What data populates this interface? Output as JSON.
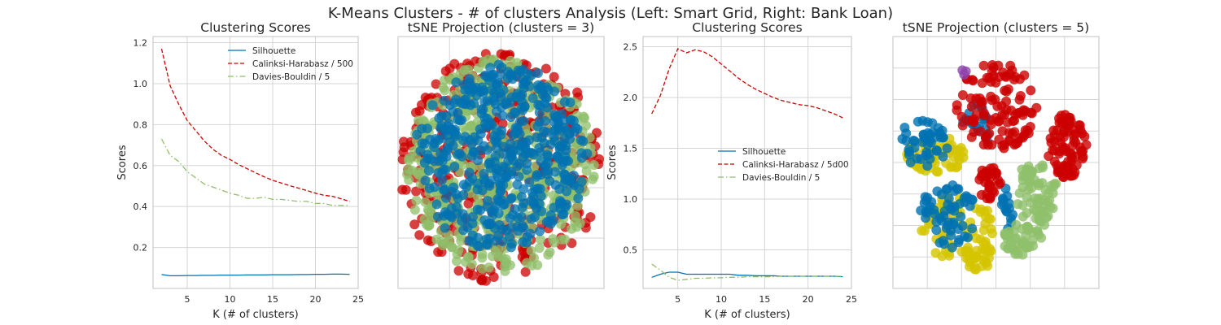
{
  "figure": {
    "suptitle": "K-Means Clusters - # of clusters Analysis (Left: Smart Grid, Right: Bank Loan)"
  },
  "chart_data": [
    {
      "type": "line",
      "title": "Clustering Scores",
      "xlabel": "K (# of clusters)",
      "ylabel": "Scores",
      "xlim": [
        1,
        25
      ],
      "ylim": [
        0.0,
        1.23
      ],
      "xticks": [
        5,
        10,
        15,
        20,
        25
      ],
      "yticks": [
        0.2,
        0.4,
        0.6,
        0.8,
        1.0,
        1.2
      ],
      "ytick_labels": [
        "0.2",
        "0.4",
        "0.6",
        "0.8",
        "1.0",
        "1.2"
      ],
      "grid": true,
      "legend": "top-right",
      "x": [
        2,
        3,
        4,
        5,
        6,
        7,
        8,
        9,
        10,
        11,
        12,
        13,
        14,
        15,
        16,
        17,
        18,
        19,
        20,
        21,
        22,
        23,
        24
      ],
      "series": [
        {
          "name": "Silhouette",
          "color": "#0072b2",
          "style": "solid",
          "values": [
            0.068,
            0.062,
            0.062,
            0.063,
            0.063,
            0.064,
            0.064,
            0.065,
            0.065,
            0.065,
            0.066,
            0.066,
            0.066,
            0.067,
            0.067,
            0.067,
            0.068,
            0.068,
            0.069,
            0.069,
            0.07,
            0.07,
            0.069
          ]
        },
        {
          "name": "Calinksi-Harabasz / 500",
          "color": "#cc0000",
          "style": "dashed",
          "values": [
            1.17,
            0.99,
            0.9,
            0.82,
            0.77,
            0.72,
            0.68,
            0.65,
            0.63,
            0.605,
            0.585,
            0.565,
            0.545,
            0.528,
            0.515,
            0.502,
            0.49,
            0.478,
            0.465,
            0.455,
            0.45,
            0.438,
            0.425
          ]
        },
        {
          "name": "Davies-Bouldin / 5",
          "color": "#8fbf6a",
          "style": "dashdot",
          "values": [
            0.73,
            0.65,
            0.62,
            0.57,
            0.54,
            0.51,
            0.495,
            0.48,
            0.465,
            0.455,
            0.44,
            0.44,
            0.445,
            0.435,
            0.435,
            0.43,
            0.425,
            0.425,
            0.415,
            0.415,
            0.405,
            0.405,
            0.405
          ]
        }
      ]
    },
    {
      "type": "scatter",
      "title": "tSNE Projection (clusters = 3)",
      "grid": true,
      "series": [
        {
          "color": "#cc0000"
        },
        {
          "color": "#8fbf6a"
        },
        {
          "color": "#0072b2"
        }
      ]
    },
    {
      "type": "line",
      "title": "Clustering Scores",
      "xlabel": "K (# of clusters)",
      "ylabel": "Scores",
      "xlim": [
        1,
        25
      ],
      "ylim": [
        0.12,
        2.6
      ],
      "xticks": [
        5,
        10,
        15,
        20,
        25
      ],
      "yticks": [
        0.5,
        1.0,
        1.5,
        2.0,
        2.5
      ],
      "ytick_labels": [
        "0.5",
        "1.0",
        "1.5",
        "2.0",
        "2.5"
      ],
      "grid": true,
      "legend": "center-right",
      "x": [
        2,
        3,
        4,
        5,
        6,
        7,
        8,
        9,
        10,
        11,
        12,
        13,
        14,
        15,
        16,
        17,
        18,
        19,
        20,
        21,
        22,
        23,
        24
      ],
      "series": [
        {
          "name": "Silhouette",
          "color": "#0072b2",
          "style": "solid",
          "values": [
            0.23,
            0.26,
            0.28,
            0.28,
            0.26,
            0.26,
            0.26,
            0.26,
            0.26,
            0.26,
            0.25,
            0.25,
            0.245,
            0.245,
            0.245,
            0.24,
            0.24,
            0.24,
            0.24,
            0.24,
            0.24,
            0.24,
            0.235
          ]
        },
        {
          "name": "Calinksi-Harabasz / 5d00",
          "color": "#cc0000",
          "style": "dashed",
          "values": [
            1.84,
            2.02,
            2.28,
            2.48,
            2.44,
            2.47,
            2.45,
            2.4,
            2.33,
            2.26,
            2.19,
            2.13,
            2.08,
            2.04,
            2.0,
            1.97,
            1.95,
            1.93,
            1.92,
            1.9,
            1.87,
            1.84,
            1.8
          ]
        },
        {
          "name": "Davies-Bouldin / 5",
          "color": "#8fbf6a",
          "style": "dashdot",
          "values": [
            0.36,
            0.3,
            0.23,
            0.2,
            0.21,
            0.22,
            0.22,
            0.225,
            0.225,
            0.23,
            0.23,
            0.235,
            0.235,
            0.235,
            0.235,
            0.24,
            0.24,
            0.24,
            0.24,
            0.24,
            0.24,
            0.24,
            0.24
          ]
        }
      ]
    },
    {
      "type": "scatter",
      "title": "tSNE Projection (clusters = 5)",
      "grid": true,
      "series": [
        {
          "color": "#cc0000"
        },
        {
          "color": "#d4c400"
        },
        {
          "color": "#8fbf6a"
        },
        {
          "color": "#0072b2"
        },
        {
          "color": "#8e44ad"
        }
      ]
    }
  ]
}
